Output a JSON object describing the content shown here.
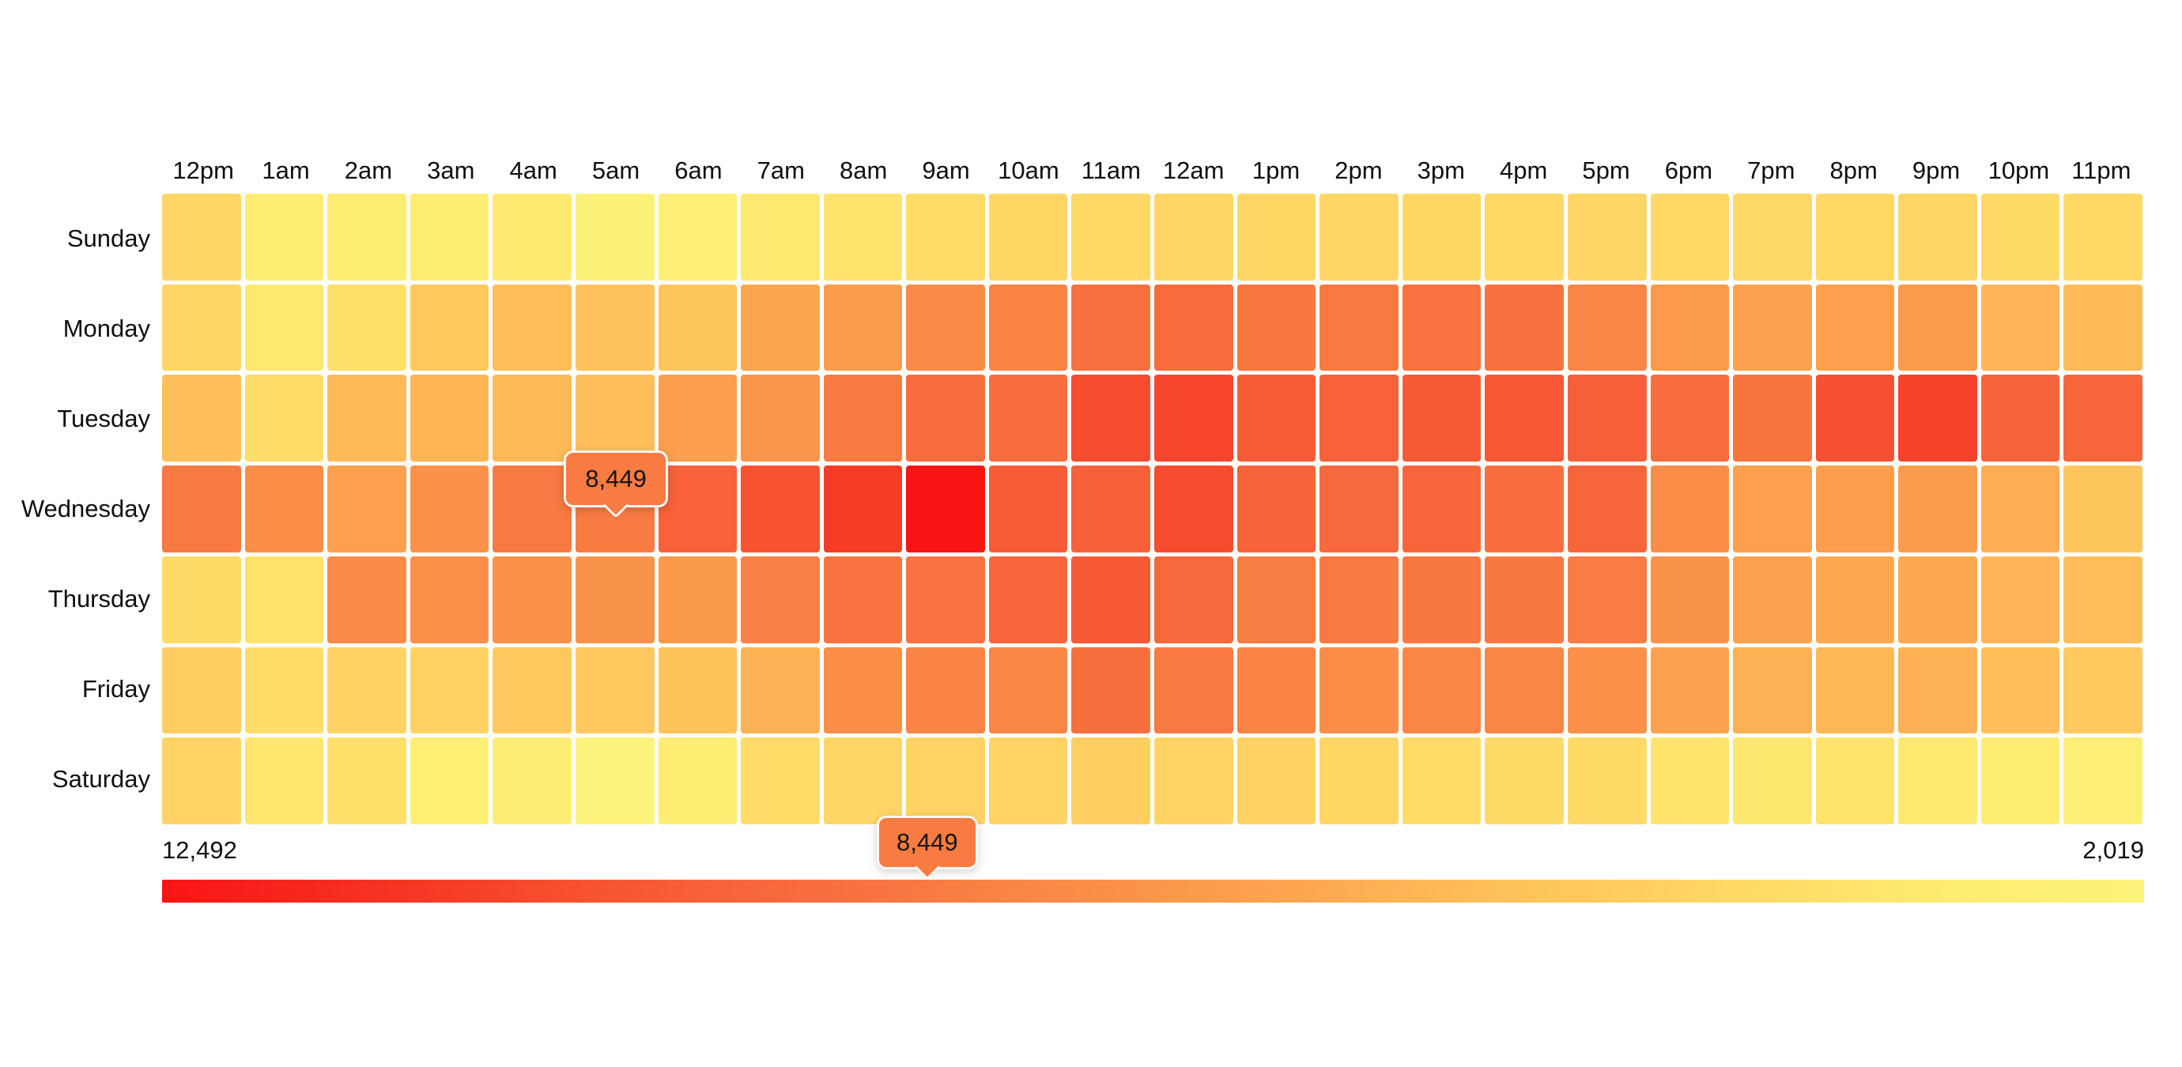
{
  "page": {
    "background": "#ffffff"
  },
  "chart_data": {
    "type": "heatmap",
    "title": "",
    "x_categories": [
      "12pm",
      "1am",
      "2am",
      "3am",
      "4am",
      "5am",
      "6am",
      "7am",
      "8am",
      "9am",
      "10am",
      "11am",
      "12am",
      "1pm",
      "2pm",
      "3pm",
      "4pm",
      "5pm",
      "6pm",
      "7pm",
      "8pm",
      "9pm",
      "10pm",
      "11pm"
    ],
    "y_categories": [
      "Sunday",
      "Monday",
      "Tuesday",
      "Wednesday",
      "Thursday",
      "Friday",
      "Saturday"
    ],
    "values": [
      [
        4300,
        2850,
        2900,
        2850,
        3100,
        2250,
        2700,
        3200,
        3500,
        4000,
        4250,
        4200,
        4300,
        4250,
        4300,
        4250,
        4200,
        4300,
        4200,
        4150,
        4200,
        4300,
        4100,
        4200
      ],
      [
        4300,
        3200,
        3750,
        4950,
        5550,
        5350,
        5200,
        6500,
        6950,
        7750,
        8150,
        8900,
        9150,
        8600,
        8500,
        8750,
        8800,
        7950,
        7050,
        6750,
        6800,
        7050,
        5950,
        5650
      ],
      [
        5500,
        3950,
        5700,
        5900,
        5750,
        5500,
        6850,
        7300,
        8450,
        9050,
        9050,
        10500,
        10700,
        9850,
        9600,
        9900,
        10000,
        9700,
        9100,
        8700,
        10350,
        10800,
        9550,
        9450
      ],
      [
        8500,
        7650,
        6800,
        7400,
        8450,
        8449,
        9600,
        10200,
        11000,
        12492,
        9850,
        9650,
        10500,
        9550,
        9300,
        9400,
        9000,
        9400,
        7600,
        6800,
        6850,
        6950,
        6200,
        5200
      ],
      [
        4100,
        3650,
        7750,
        7500,
        7500,
        7350,
        7100,
        8200,
        8750,
        8750,
        9400,
        10000,
        9300,
        8350,
        8450,
        8550,
        8550,
        8400,
        7350,
        6700,
        6400,
        6400,
        5950,
        5550
      ],
      [
        4750,
        3900,
        4450,
        4500,
        5050,
        5050,
        5300,
        6050,
        7600,
        8050,
        7950,
        8950,
        8450,
        8050,
        7650,
        7950,
        7950,
        7500,
        6700,
        6100,
        5800,
        6000,
        5450,
        4950
      ],
      [
        4400,
        3400,
        3750,
        2750,
        2800,
        2019,
        2900,
        4050,
        4300,
        4400,
        4400,
        4700,
        4400,
        4450,
        4350,
        4050,
        4100,
        4100,
        3550,
        3300,
        3500,
        3200,
        2950,
        2650
      ]
    ],
    "value_min": 2019,
    "value_max": 12492,
    "colorscale": {
      "description": "t=0 is min (yellow), t=1 is max (red)",
      "stops": [
        {
          "t": 0.0,
          "color": "#FCF47C"
        },
        {
          "t": 0.1,
          "color": "#FEEB71"
        },
        {
          "t": 0.2,
          "color": "#FFDA67"
        },
        {
          "t": 0.26,
          "color": "#FFCD60"
        },
        {
          "t": 0.33,
          "color": "#FFC05B"
        },
        {
          "t": 0.4,
          "color": "#FDAD53"
        },
        {
          "t": 0.48,
          "color": "#FB9A4B"
        },
        {
          "t": 0.56,
          "color": "#F98847"
        },
        {
          "t": 0.64,
          "color": "#F87440"
        },
        {
          "t": 0.72,
          "color": "#F7633A"
        },
        {
          "t": 0.8,
          "color": "#F74E30"
        },
        {
          "t": 0.88,
          "color": "#F53524"
        },
        {
          "t": 1.0,
          "color": "#F91414"
        }
      ]
    },
    "grid": {
      "gap_color": "#ffffff"
    },
    "legend": {
      "orientation": "horizontal",
      "left_label": "12,492",
      "right_label": "2,019",
      "left_value": 12492,
      "right_value": 2019
    },
    "cell_tooltip": {
      "label": "8,449",
      "value": 8449,
      "day": "Wednesday",
      "hour": "5am"
    },
    "legend_tooltip": {
      "label": "8,449",
      "value": 8449
    }
  }
}
